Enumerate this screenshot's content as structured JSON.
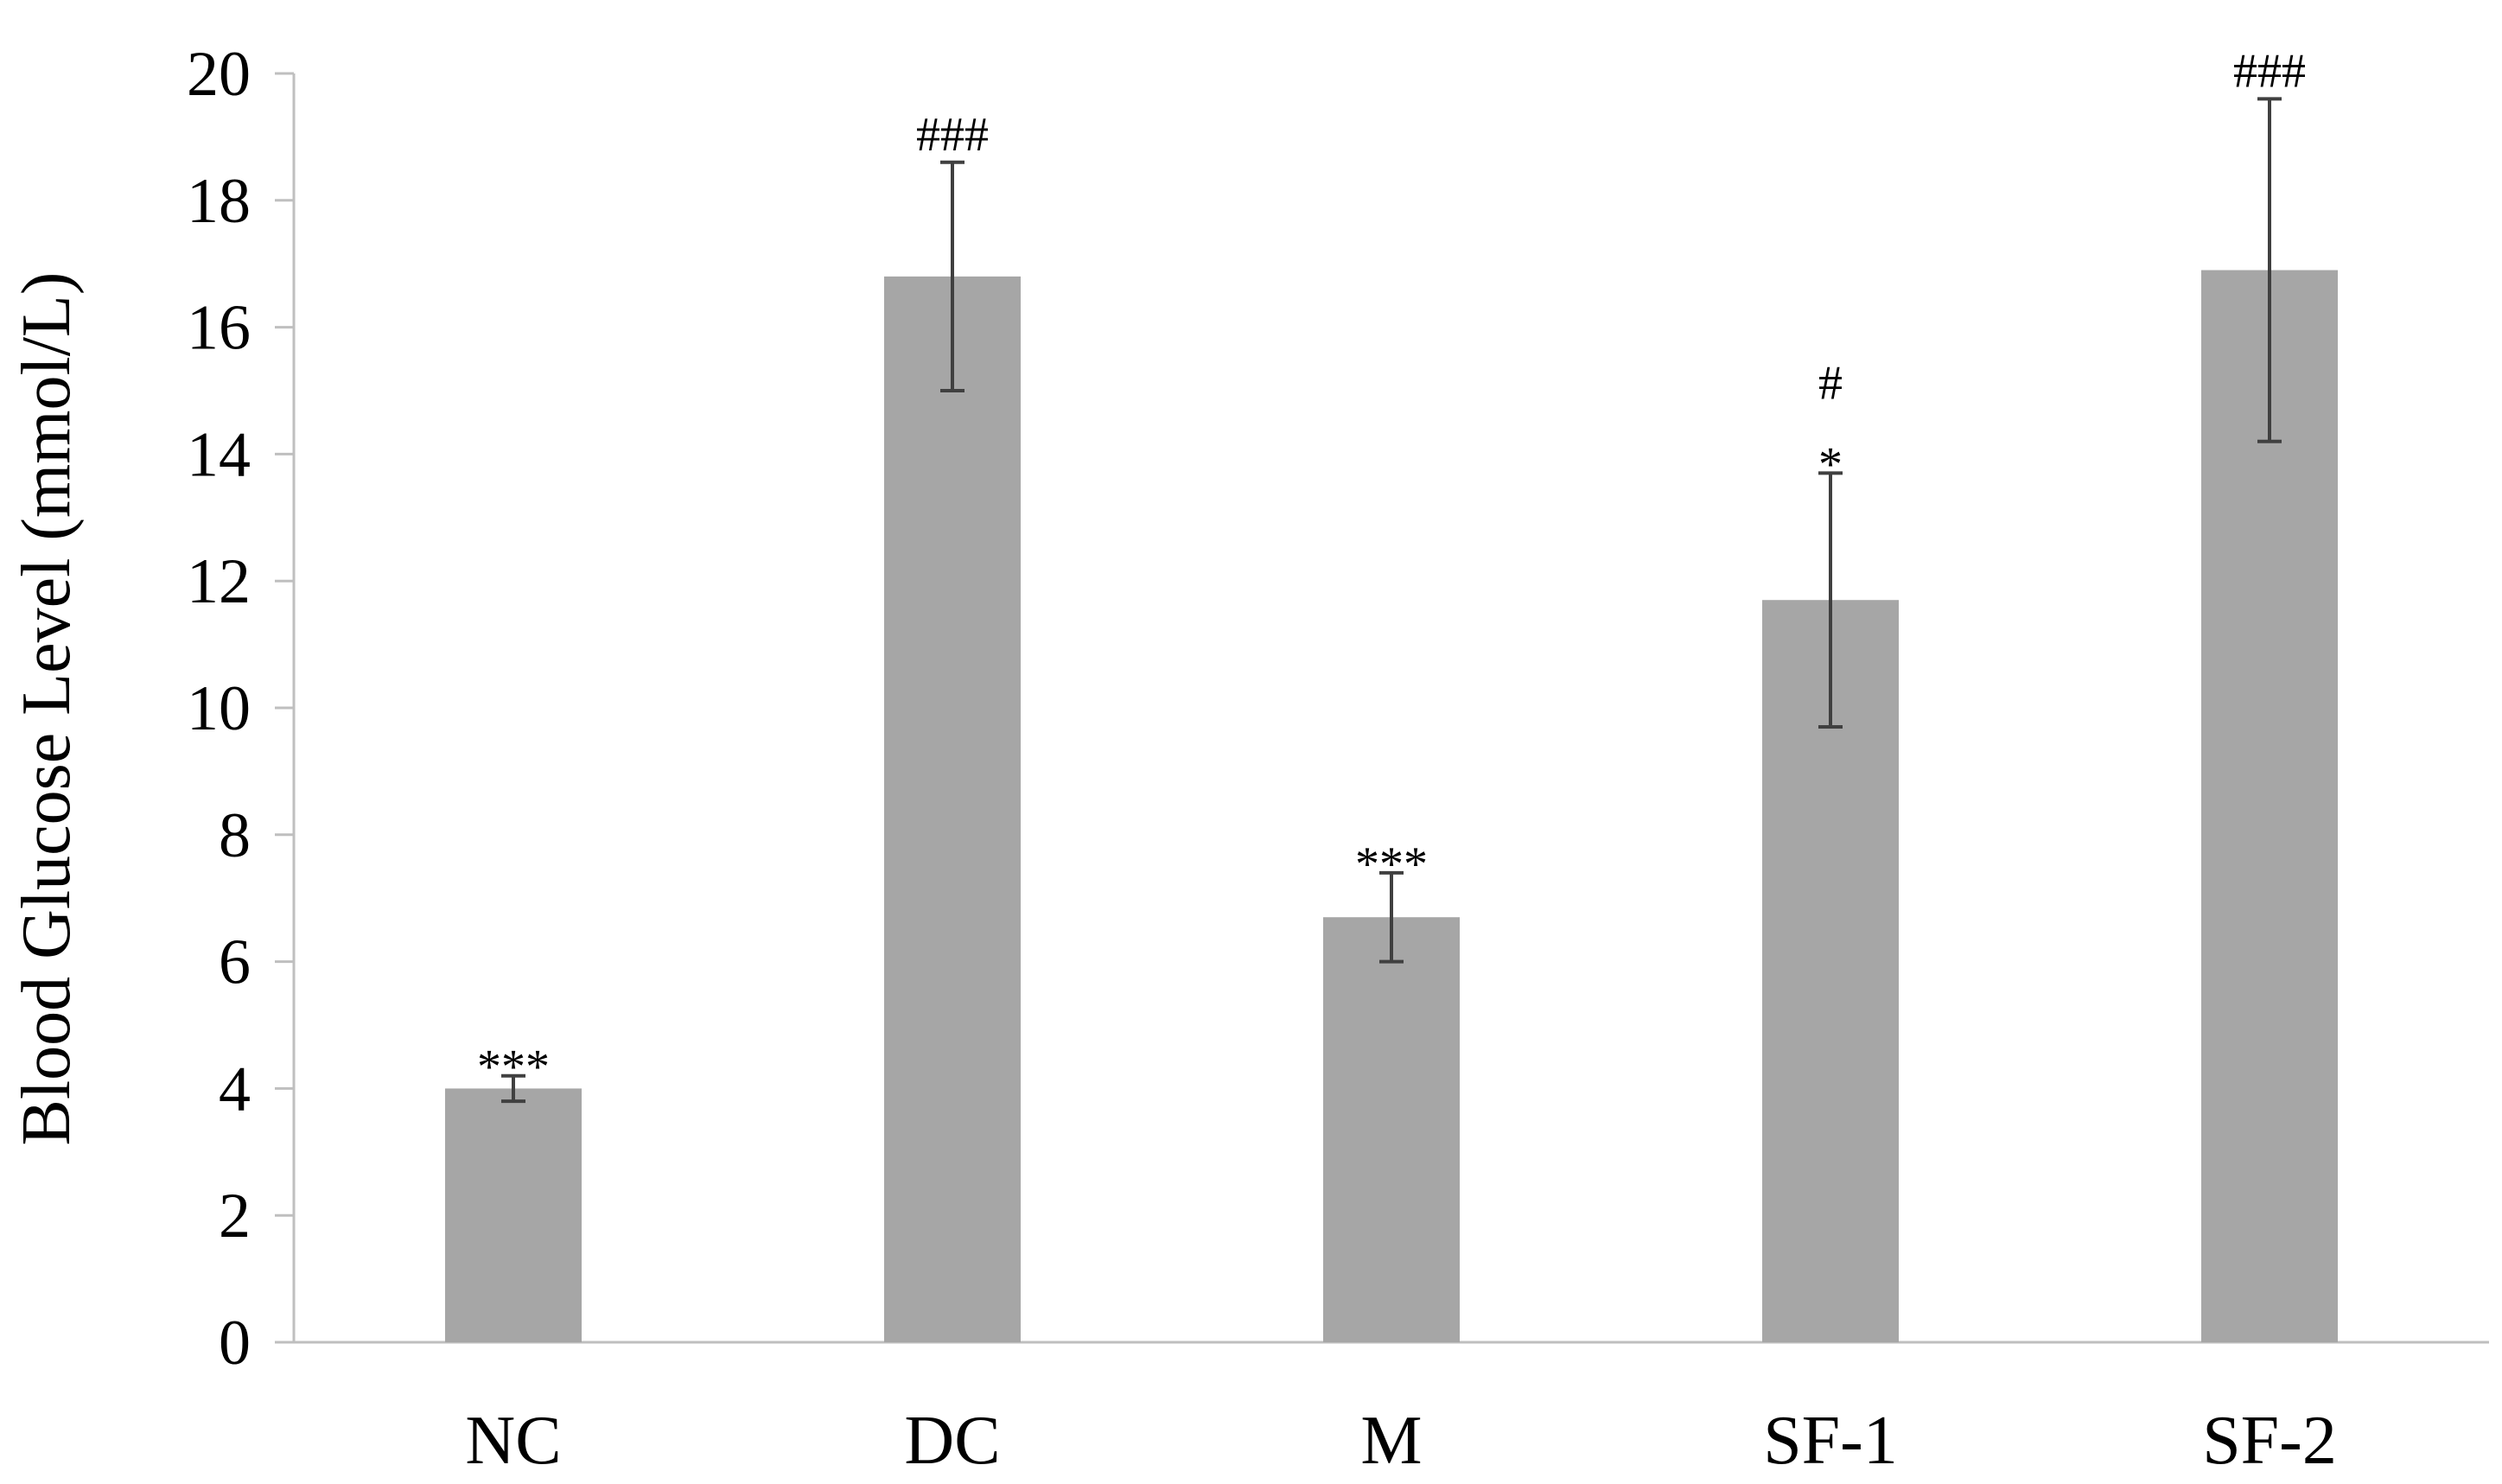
{
  "chart_data": {
    "type": "bar",
    "title": "",
    "xlabel": "",
    "ylabel": "Blood Glucose Level (mmol/L)",
    "ylim": [
      0,
      20
    ],
    "yticks": [
      0,
      2,
      4,
      6,
      8,
      10,
      12,
      14,
      16,
      18,
      20
    ],
    "grid": false,
    "categories": [
      "NC",
      "DC",
      "M",
      "SF-1",
      "SF-2"
    ],
    "values": [
      4.0,
      16.8,
      6.7,
      11.7,
      16.9
    ],
    "error": [
      0.2,
      1.8,
      0.7,
      2.0,
      2.7
    ],
    "significance": [
      [
        "***"
      ],
      [
        "###"
      ],
      [
        "***"
      ],
      [
        "#",
        "*"
      ],
      [
        "###"
      ]
    ],
    "bar_color": "#a6a6a6",
    "error_color": "#404040",
    "axis_color": "#bfbfbf"
  }
}
